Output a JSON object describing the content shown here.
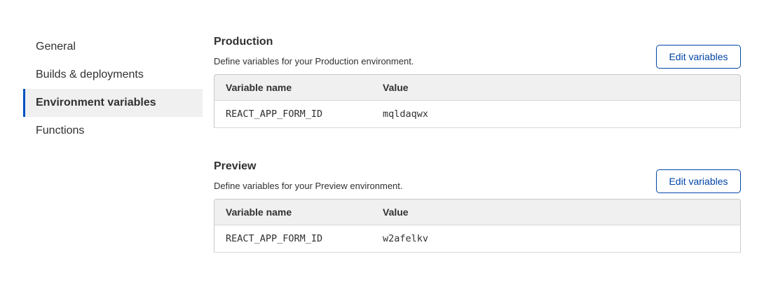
{
  "sidebar": {
    "items": [
      {
        "label": "General"
      },
      {
        "label": "Builds & deployments"
      },
      {
        "label": "Environment variables",
        "active": true
      },
      {
        "label": "Functions"
      }
    ]
  },
  "accent": "#0051c3",
  "sections": [
    {
      "title": "Production",
      "description": "Define variables for your Production environment.",
      "button": "Edit variables",
      "columns": [
        "Variable name",
        "Value"
      ],
      "rows": [
        [
          "REACT_APP_FORM_ID",
          "mqldaqwx"
        ]
      ]
    },
    {
      "title": "Preview",
      "description": "Define variables for your Preview environment.",
      "button": "Edit variables",
      "columns": [
        "Variable name",
        "Value"
      ],
      "rows": [
        [
          "REACT_APP_FORM_ID",
          "w2afelkv"
        ]
      ]
    }
  ]
}
